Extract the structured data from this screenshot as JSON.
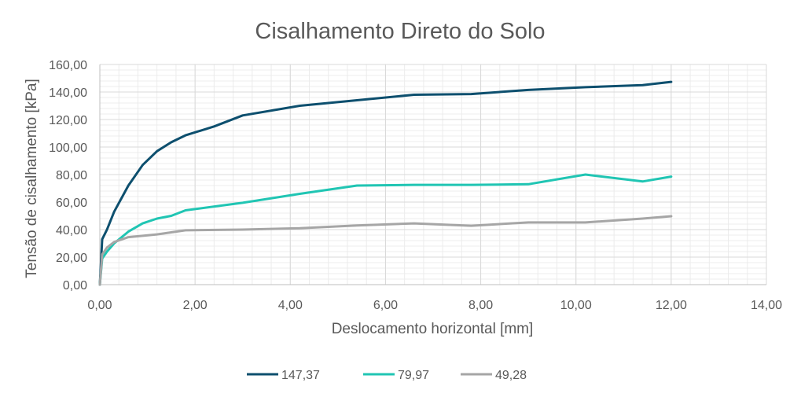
{
  "chart_data": {
    "type": "line",
    "title": "Cisalhamento Direto do Solo",
    "xlabel": "Deslocamento horizontal [mm]",
    "ylabel": "Tensão de cisalhamento [kPa]",
    "xlim": [
      0,
      14
    ],
    "ylim": [
      0,
      160
    ],
    "x_ticks": [
      0,
      2,
      4,
      6,
      8,
      10,
      12,
      14
    ],
    "y_ticks": [
      0,
      20,
      40,
      60,
      80,
      100,
      120,
      140,
      160
    ],
    "x_tick_labels": [
      "0,00",
      "2,00",
      "4,00",
      "6,00",
      "8,00",
      "10,00",
      "12,00",
      "14,00"
    ],
    "y_tick_labels": [
      "0,00",
      "20,00",
      "40,00",
      "60,00",
      "80,00",
      "100,00",
      "120,00",
      "140,00",
      "160,00"
    ],
    "grid": true,
    "legend_position": "bottom",
    "series": [
      {
        "name": "147,37",
        "color": "#0d4f6e",
        "points": [
          [
            0,
            0
          ],
          [
            0.05,
            33
          ],
          [
            0.15,
            40
          ],
          [
            0.3,
            53
          ],
          [
            0.6,
            72
          ],
          [
            0.9,
            87
          ],
          [
            1.2,
            97
          ],
          [
            1.5,
            103.5
          ],
          [
            1.8,
            108.5
          ],
          [
            2.4,
            115
          ],
          [
            3.0,
            123
          ],
          [
            4.2,
            130
          ],
          [
            5.4,
            134
          ],
          [
            6.6,
            138
          ],
          [
            7.8,
            138.5
          ],
          [
            9.0,
            141.5
          ],
          [
            10.2,
            143.5
          ],
          [
            11.4,
            145
          ],
          [
            12.0,
            147.4
          ]
        ]
      },
      {
        "name": "79,97",
        "color": "#20c5b3",
        "points": [
          [
            0,
            0
          ],
          [
            0.05,
            19
          ],
          [
            0.15,
            24
          ],
          [
            0.3,
            30
          ],
          [
            0.6,
            38.5
          ],
          [
            0.9,
            44.5
          ],
          [
            1.2,
            48
          ],
          [
            1.5,
            50
          ],
          [
            1.8,
            54
          ],
          [
            3.0,
            59.5
          ],
          [
            4.2,
            66
          ],
          [
            5.4,
            72
          ],
          [
            6.6,
            72.5
          ],
          [
            7.8,
            72.5
          ],
          [
            9.0,
            73
          ],
          [
            10.2,
            80
          ],
          [
            11.4,
            75
          ],
          [
            12.0,
            78.5
          ]
        ]
      },
      {
        "name": "49,28",
        "color": "#a6a6a6",
        "points": [
          [
            0,
            0
          ],
          [
            0.05,
            22
          ],
          [
            0.15,
            27
          ],
          [
            0.3,
            31
          ],
          [
            0.6,
            34.5
          ],
          [
            0.9,
            35.5
          ],
          [
            1.2,
            36.5
          ],
          [
            1.5,
            38
          ],
          [
            1.8,
            39.5
          ],
          [
            3.0,
            40
          ],
          [
            4.2,
            41
          ],
          [
            5.4,
            43
          ],
          [
            6.6,
            44.5
          ],
          [
            7.8,
            42.8
          ],
          [
            9.0,
            45.2
          ],
          [
            10.2,
            45.2
          ],
          [
            11.4,
            48
          ],
          [
            12.0,
            49.7
          ]
        ]
      }
    ]
  }
}
